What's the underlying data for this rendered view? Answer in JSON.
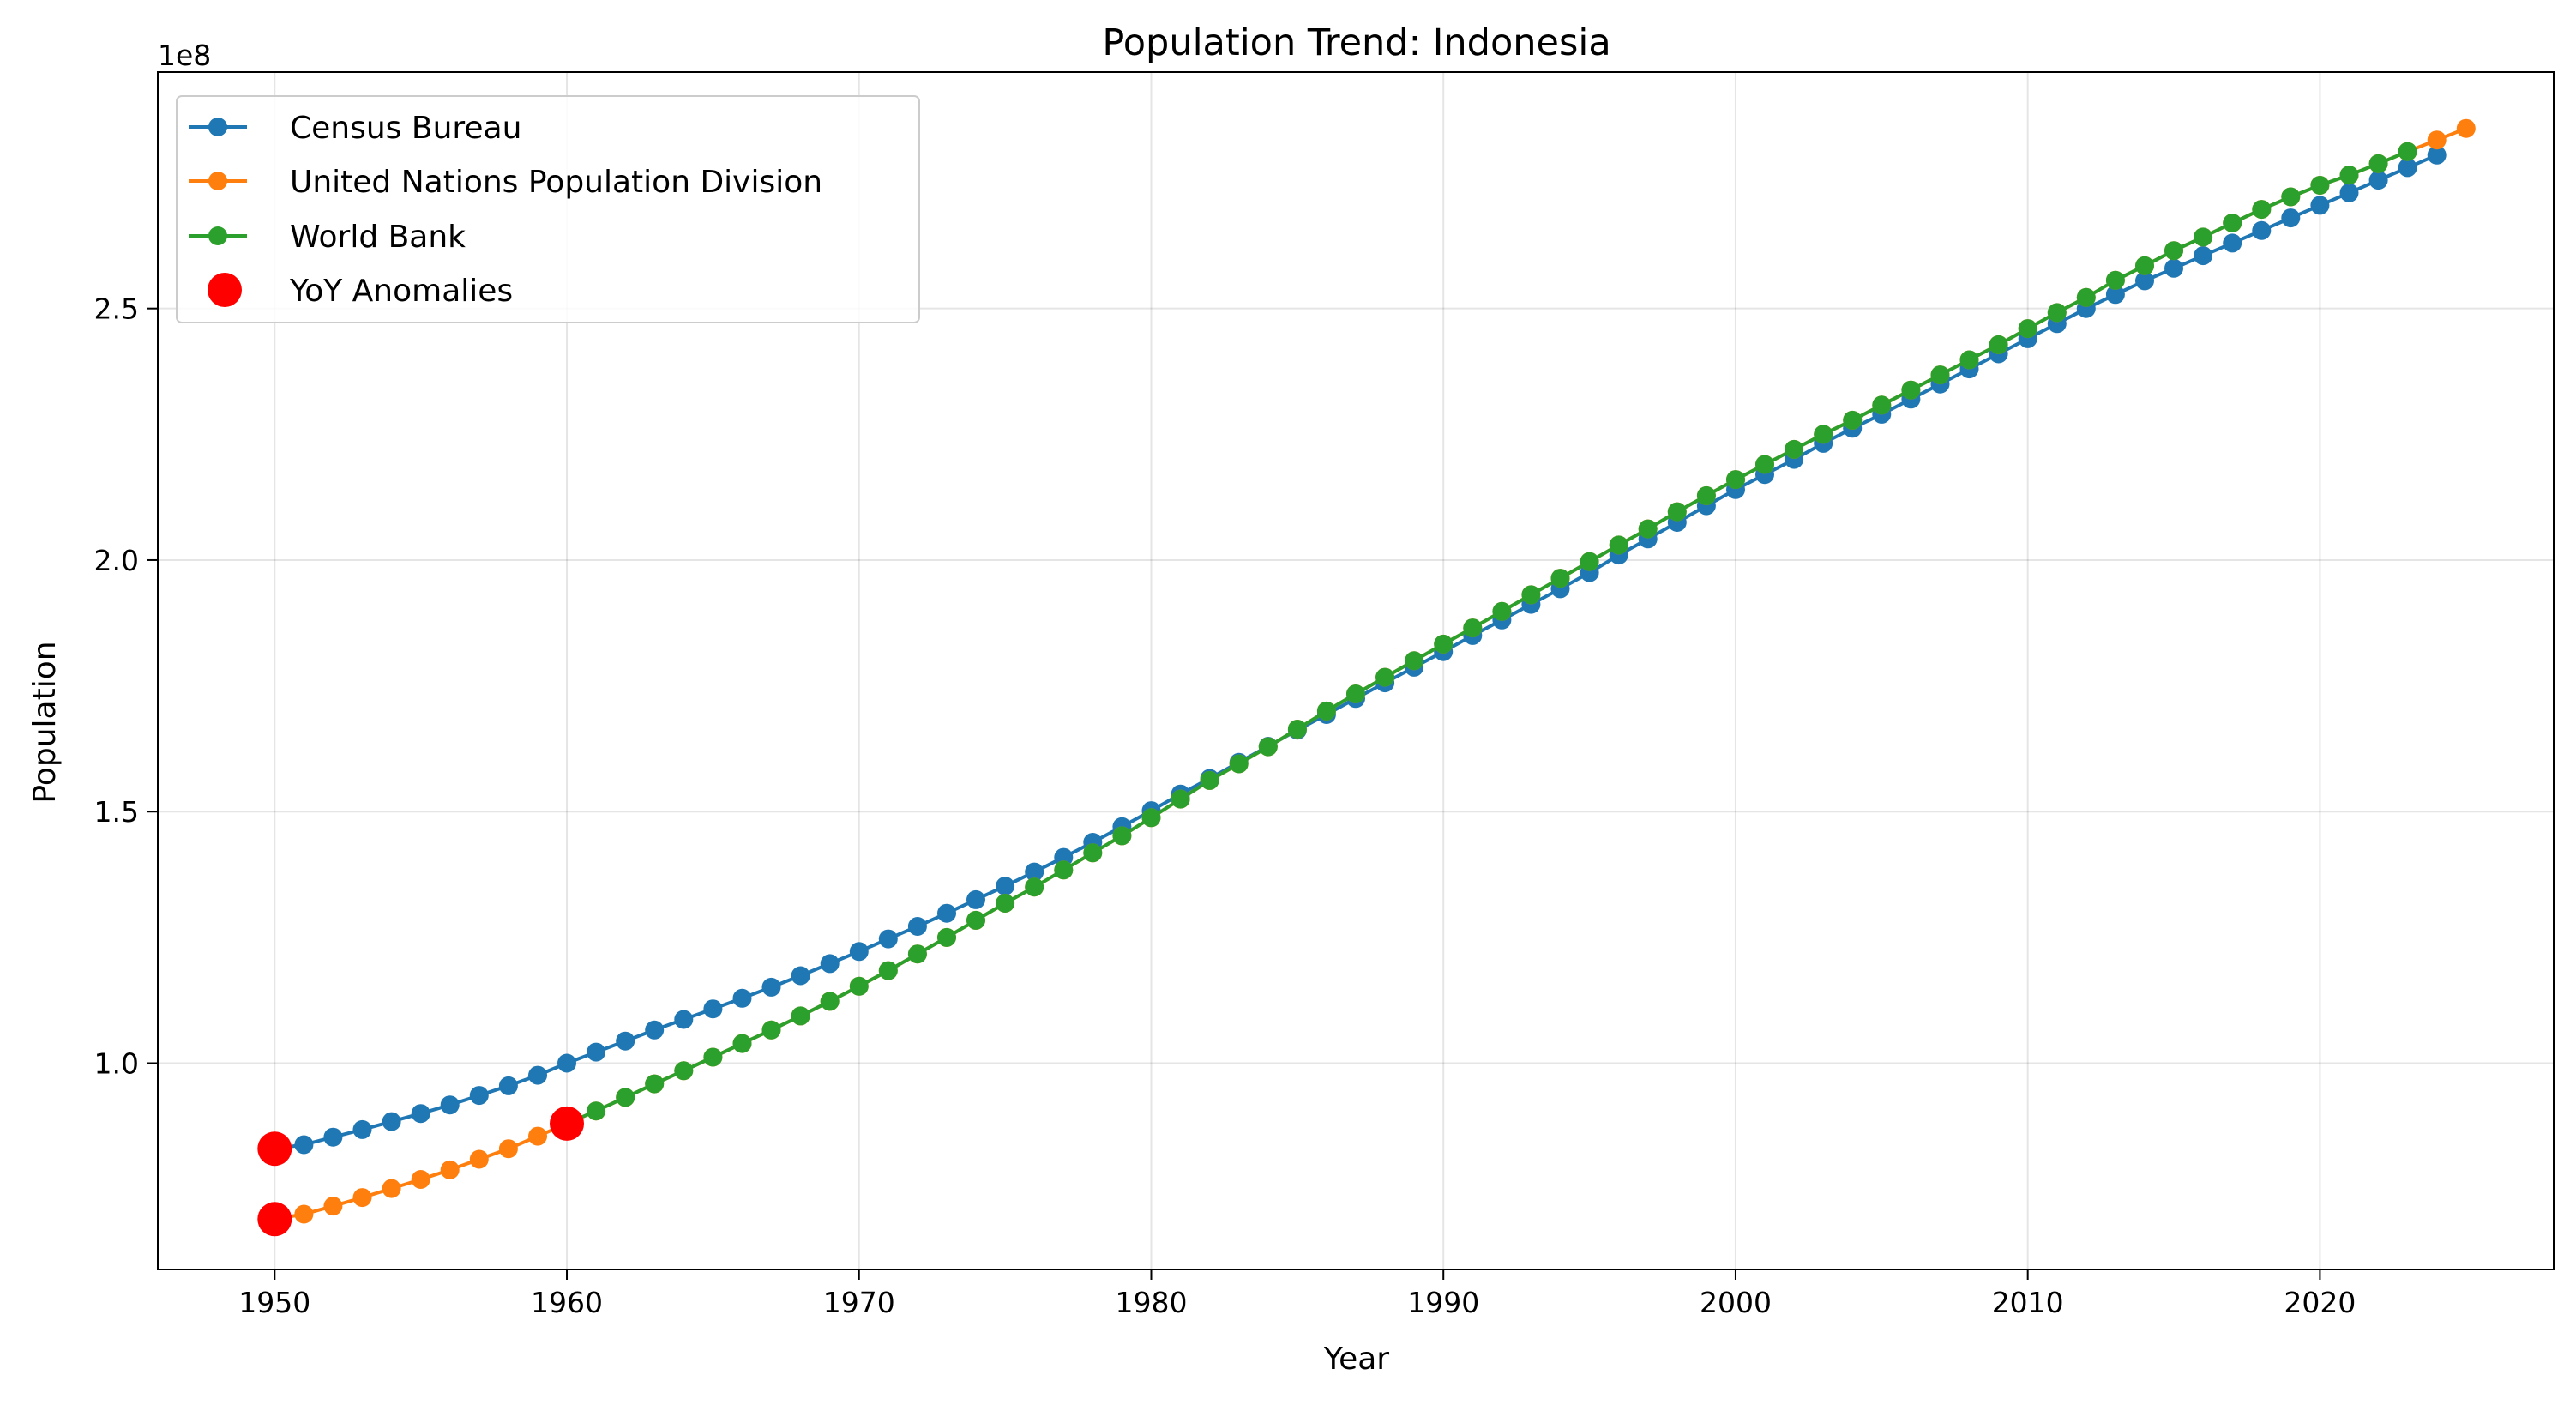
{
  "chart_data": {
    "type": "line",
    "title": "Population Trend: Indonesia",
    "xlabel": "Year",
    "ylabel": "Population",
    "y_scale_label": "1e8",
    "y_unit": 100000000,
    "xlim": [
      1946,
      2028
    ],
    "ylim": [
      0.59,
      2.97
    ],
    "x_ticks": [
      1950,
      1960,
      1970,
      1980,
      1990,
      2000,
      2010,
      2020
    ],
    "x_tick_labels": [
      "1950",
      "1960",
      "1970",
      "1980",
      "1990",
      "2000",
      "2010",
      "2020"
    ],
    "y_ticks": [
      1.0,
      1.5,
      2.0,
      2.5
    ],
    "y_tick_labels": [
      "1.0",
      "1.5",
      "2.0",
      "2.5"
    ],
    "grid": true,
    "legend_position": "upper-left",
    "series": [
      {
        "name": "Census Bureau",
        "color": "#1f77b4",
        "x": [
          1950,
          1951,
          1952,
          1953,
          1954,
          1955,
          1956,
          1957,
          1958,
          1959,
          1960,
          1961,
          1962,
          1963,
          1964,
          1965,
          1966,
          1967,
          1968,
          1969,
          1970,
          1971,
          1972,
          1973,
          1974,
          1975,
          1976,
          1977,
          1978,
          1979,
          1980,
          1981,
          1982,
          1983,
          1984,
          1985,
          1986,
          1987,
          1988,
          1989,
          1990,
          1991,
          1992,
          1993,
          1994,
          1995,
          1996,
          1997,
          1998,
          1999,
          2000,
          2001,
          2002,
          2003,
          2004,
          2005,
          2006,
          2007,
          2008,
          2009,
          2010,
          2011,
          2012,
          2013,
          2014,
          2015,
          2016,
          2017,
          2018,
          2019,
          2020,
          2021,
          2022,
          2023,
          2024
        ],
        "values": [
          0.83,
          0.838,
          0.853,
          0.868,
          0.884,
          0.9,
          0.917,
          0.936,
          0.955,
          0.976,
          1.0,
          1.022,
          1.044,
          1.066,
          1.087,
          1.108,
          1.129,
          1.151,
          1.174,
          1.198,
          1.222,
          1.247,
          1.272,
          1.298,
          1.325,
          1.352,
          1.38,
          1.409,
          1.439,
          1.47,
          1.502,
          1.535,
          1.566,
          1.598,
          1.63,
          1.662,
          1.693,
          1.725,
          1.756,
          1.787,
          1.818,
          1.85,
          1.881,
          1.912,
          1.943,
          1.975,
          2.01,
          2.042,
          2.075,
          2.108,
          2.14,
          2.17,
          2.2,
          2.232,
          2.262,
          2.29,
          2.32,
          2.35,
          2.38,
          2.41,
          2.44,
          2.47,
          2.5,
          2.528,
          2.555,
          2.58,
          2.605,
          2.63,
          2.655,
          2.68,
          2.705,
          2.73,
          2.755,
          2.78,
          2.805
        ]
      },
      {
        "name": "United Nations Population Division",
        "color": "#ff7f0e",
        "x": [
          1950,
          1951,
          1952,
          1953,
          1954,
          1955,
          1956,
          1957,
          1958,
          1959,
          1960,
          1961,
          1962,
          1963,
          1964,
          1965,
          1966,
          1967,
          1968,
          1969,
          1970,
          1971,
          1972,
          1973,
          1974,
          1975,
          1976,
          1977,
          1978,
          1979,
          1980,
          1981,
          1982,
          1983,
          1984,
          1985,
          1986,
          1987,
          1988,
          1989,
          1990,
          1991,
          1992,
          1993,
          1994,
          1995,
          1996,
          1997,
          1998,
          1999,
          2000,
          2001,
          2002,
          2003,
          2004,
          2005,
          2006,
          2007,
          2008,
          2009,
          2010,
          2011,
          2012,
          2013,
          2014,
          2015,
          2016,
          2017,
          2018,
          2019,
          2020,
          2021,
          2022,
          2023,
          2024,
          2025
        ],
        "values": [
          0.69,
          0.7,
          0.716,
          0.733,
          0.751,
          0.769,
          0.788,
          0.809,
          0.83,
          0.855,
          0.88,
          0.905,
          0.932,
          0.959,
          0.985,
          1.012,
          1.039,
          1.066,
          1.094,
          1.123,
          1.153,
          1.184,
          1.217,
          1.25,
          1.284,
          1.318,
          1.35,
          1.384,
          1.418,
          1.452,
          1.488,
          1.525,
          1.562,
          1.595,
          1.629,
          1.664,
          1.7,
          1.734,
          1.767,
          1.8,
          1.833,
          1.865,
          1.898,
          1.931,
          1.964,
          1.997,
          2.03,
          2.062,
          2.096,
          2.128,
          2.16,
          2.19,
          2.22,
          2.25,
          2.278,
          2.308,
          2.338,
          2.368,
          2.398,
          2.428,
          2.46,
          2.492,
          2.522,
          2.556,
          2.585,
          2.615,
          2.642,
          2.67,
          2.697,
          2.722,
          2.745,
          2.765,
          2.788,
          2.812,
          2.835,
          2.858
        ]
      },
      {
        "name": "World Bank",
        "color": "#2ca02c",
        "x": [
          1960,
          1961,
          1962,
          1963,
          1964,
          1965,
          1966,
          1967,
          1968,
          1969,
          1970,
          1971,
          1972,
          1973,
          1974,
          1975,
          1976,
          1977,
          1978,
          1979,
          1980,
          1981,
          1982,
          1983,
          1984,
          1985,
          1986,
          1987,
          1988,
          1989,
          1990,
          1991,
          1992,
          1993,
          1994,
          1995,
          1996,
          1997,
          1998,
          1999,
          2000,
          2001,
          2002,
          2003,
          2004,
          2005,
          2006,
          2007,
          2008,
          2009,
          2010,
          2011,
          2012,
          2013,
          2014,
          2015,
          2016,
          2017,
          2018,
          2019,
          2020,
          2021,
          2022,
          2023
        ],
        "values": [
          0.88,
          0.905,
          0.932,
          0.959,
          0.985,
          1.012,
          1.039,
          1.066,
          1.094,
          1.123,
          1.153,
          1.184,
          1.217,
          1.25,
          1.284,
          1.318,
          1.35,
          1.384,
          1.418,
          1.452,
          1.488,
          1.525,
          1.562,
          1.595,
          1.629,
          1.664,
          1.7,
          1.734,
          1.767,
          1.8,
          1.833,
          1.865,
          1.898,
          1.931,
          1.964,
          1.997,
          2.03,
          2.062,
          2.096,
          2.128,
          2.16,
          2.19,
          2.22,
          2.25,
          2.278,
          2.308,
          2.338,
          2.368,
          2.398,
          2.428,
          2.46,
          2.492,
          2.522,
          2.556,
          2.585,
          2.615,
          2.642,
          2.67,
          2.697,
          2.722,
          2.745,
          2.765,
          2.788,
          2.812
        ]
      }
    ],
    "anomalies": {
      "name": "YoY Anomalies",
      "color": "#ff0000",
      "points": [
        {
          "x": 1950,
          "y": 0.83
        },
        {
          "x": 1950,
          "y": 0.69
        },
        {
          "x": 1960,
          "y": 0.88
        }
      ]
    }
  }
}
